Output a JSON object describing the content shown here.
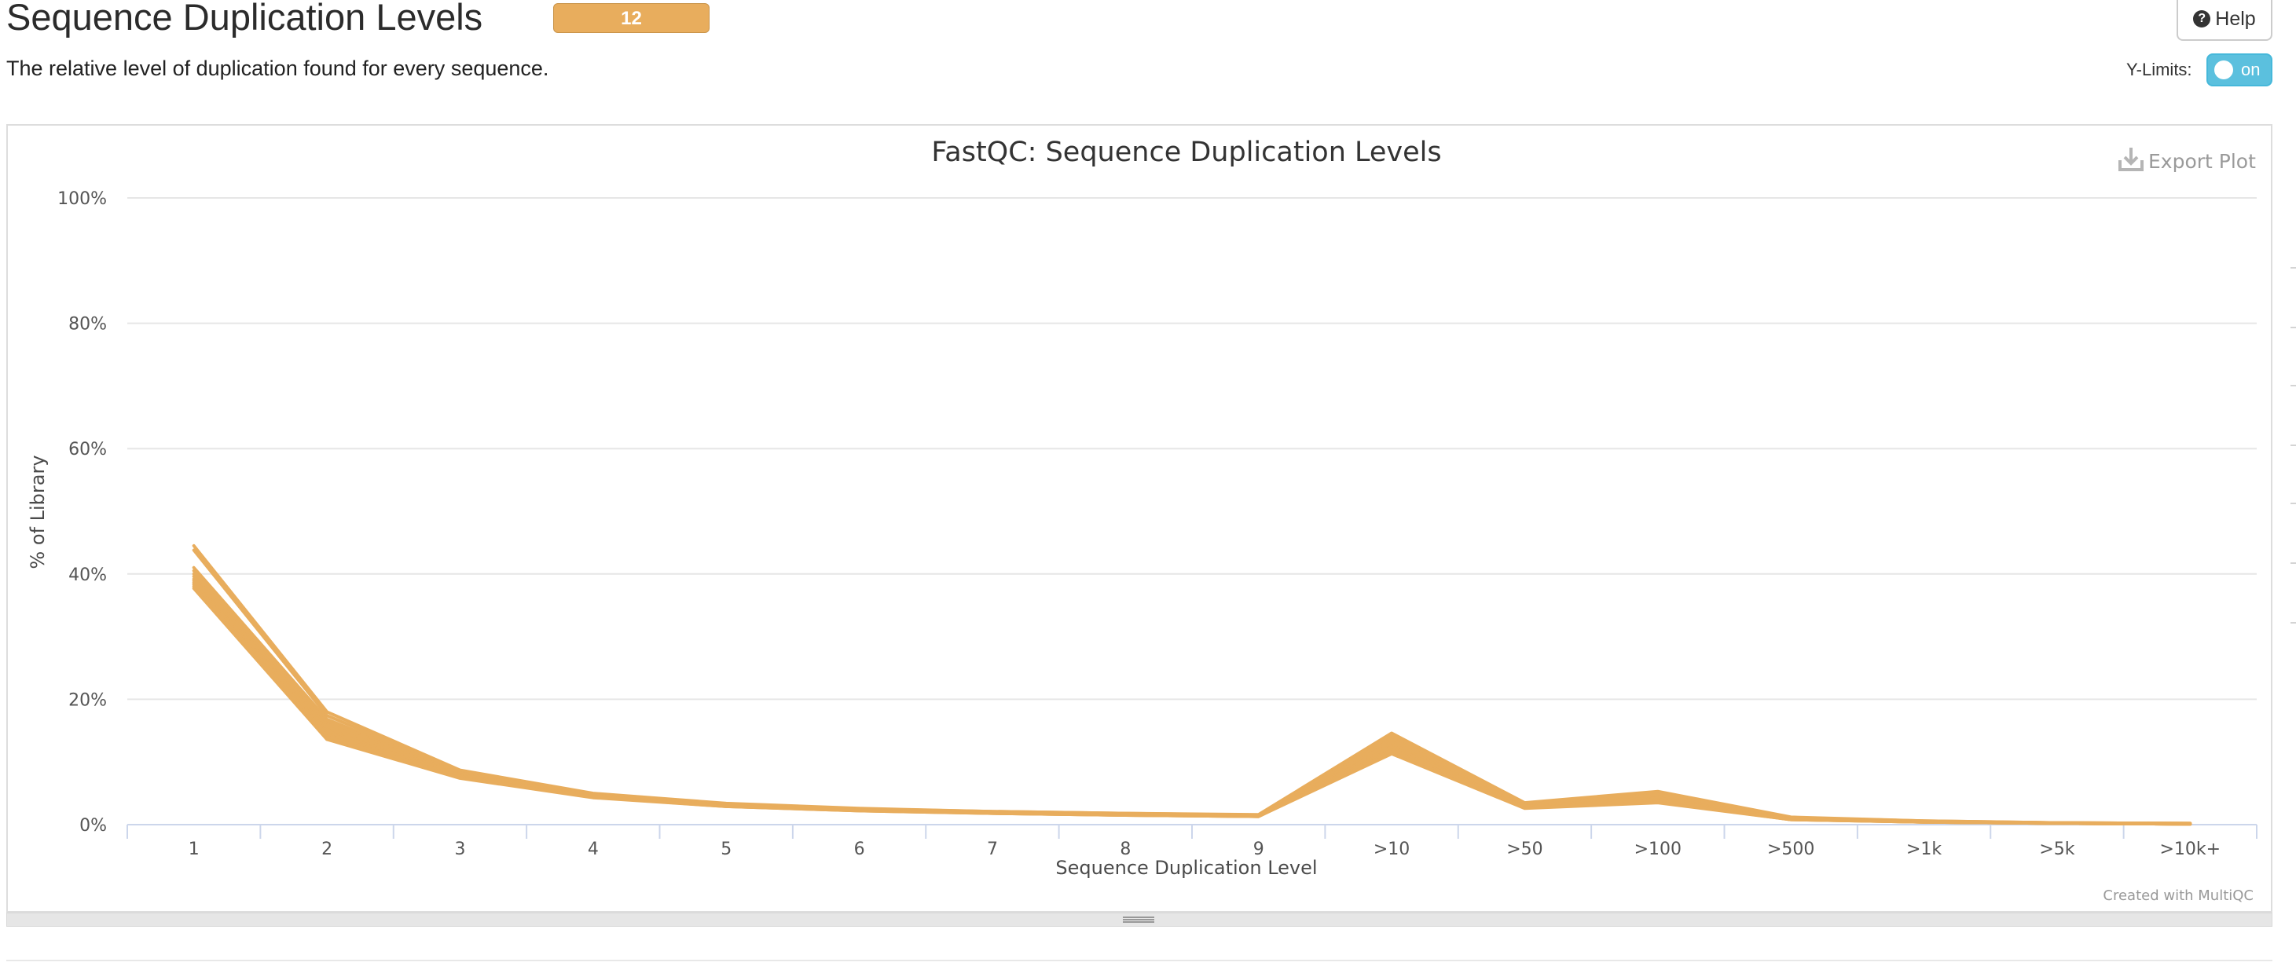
{
  "header": {
    "title": "Sequence Duplication Levels",
    "badge": "12",
    "description": "The relative level of duplication found for every sequence.",
    "help_label": "Help",
    "ylimits_label": "Y-Limits:",
    "ylimits_toggle": "on"
  },
  "colors": {
    "series": "#e8ad5d",
    "badge": "#e8ad5d",
    "toggle": "#5bc0de",
    "grid": "#e6e6e6"
  },
  "icons": {
    "help": "question-circle-icon",
    "export": "download-icon",
    "resize": "resize-grip-icon"
  },
  "chart_data": {
    "type": "line",
    "title": "FastQC: Sequence Duplication Levels",
    "xlabel": "Sequence Duplication Level",
    "ylabel": "% of Library",
    "ylim": [
      0,
      100
    ],
    "yticks": [
      "0%",
      "20%",
      "40%",
      "60%",
      "80%",
      "100%"
    ],
    "ytick_values": [
      0,
      20,
      40,
      60,
      80,
      100
    ],
    "categories": [
      "1",
      "2",
      "3",
      "4",
      "5",
      "6",
      "7",
      "8",
      "9",
      ">10",
      ">50",
      ">100",
      ">500",
      ">1k",
      ">5k",
      ">10k+"
    ],
    "grid": true,
    "legend": "none",
    "export_label": "Export Plot",
    "credit": "Created with MultiQC",
    "series": [
      {
        "values": [
          44.5,
          18.0,
          8.7,
          5.0,
          3.4,
          2.6,
          2.1,
          1.8,
          1.6,
          14.6,
          3.5,
          5.3,
          1.2,
          0.6,
          0.3,
          0.2
        ]
      },
      {
        "values": [
          43.8,
          17.4,
          8.5,
          4.9,
          3.3,
          2.5,
          2.1,
          1.8,
          1.5,
          14.2,
          3.4,
          5.0,
          1.1,
          0.6,
          0.3,
          0.2
        ]
      },
      {
        "values": [
          41.0,
          16.8,
          8.3,
          4.8,
          3.3,
          2.5,
          2.0,
          1.7,
          1.5,
          13.8,
          3.3,
          4.8,
          1.1,
          0.5,
          0.3,
          0.2
        ]
      },
      {
        "values": [
          40.5,
          16.4,
          8.2,
          4.8,
          3.2,
          2.5,
          2.0,
          1.7,
          1.5,
          13.6,
          3.2,
          4.7,
          1.0,
          0.5,
          0.3,
          0.2
        ]
      },
      {
        "values": [
          40.0,
          16.0,
          8.1,
          4.7,
          3.2,
          2.4,
          2.0,
          1.7,
          1.4,
          13.2,
          3.1,
          4.5,
          1.0,
          0.5,
          0.2,
          0.1
        ]
      },
      {
        "values": [
          39.6,
          15.6,
          8.0,
          4.6,
          3.1,
          2.4,
          1.9,
          1.6,
          1.4,
          12.9,
          3.0,
          4.3,
          1.0,
          0.5,
          0.2,
          0.1
        ]
      },
      {
        "values": [
          39.2,
          15.2,
          7.9,
          4.6,
          3.1,
          2.4,
          1.9,
          1.6,
          1.4,
          12.6,
          2.9,
          4.2,
          0.9,
          0.5,
          0.2,
          0.1
        ]
      },
      {
        "values": [
          38.9,
          14.9,
          7.8,
          4.5,
          3.0,
          2.3,
          1.9,
          1.6,
          1.4,
          12.4,
          2.9,
          4.0,
          0.9,
          0.4,
          0.2,
          0.1
        ]
      },
      {
        "values": [
          38.6,
          14.6,
          7.7,
          4.5,
          3.0,
          2.3,
          1.9,
          1.6,
          1.3,
          12.1,
          2.8,
          3.9,
          0.9,
          0.4,
          0.2,
          0.1
        ]
      },
      {
        "values": [
          38.3,
          14.3,
          7.6,
          4.4,
          3.0,
          2.3,
          1.8,
          1.5,
          1.3,
          11.9,
          2.7,
          3.8,
          0.8,
          0.4,
          0.2,
          0.1
        ]
      },
      {
        "values": [
          38.0,
          14.0,
          7.5,
          4.4,
          2.9,
          2.2,
          1.8,
          1.5,
          1.3,
          11.6,
          2.7,
          3.6,
          0.8,
          0.4,
          0.2,
          0.1
        ]
      },
      {
        "values": [
          37.7,
          13.6,
          7.4,
          4.3,
          2.9,
          2.2,
          1.8,
          1.5,
          1.3,
          11.3,
          2.6,
          3.5,
          0.8,
          0.4,
          0.2,
          0.1
        ]
      }
    ]
  }
}
